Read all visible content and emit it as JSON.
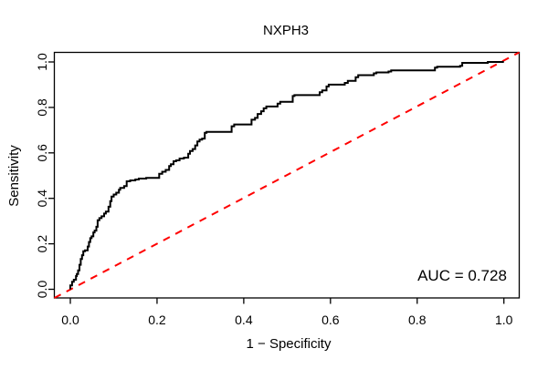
{
  "chart_data": {
    "type": "line",
    "title": "NXPH3",
    "xlabel": "1 − Specificity",
    "ylabel": "Sensitivity",
    "xlim": [
      0,
      1
    ],
    "ylim": [
      0,
      1
    ],
    "x_ticks": [
      0.0,
      0.2,
      0.4,
      0.6,
      0.8,
      1.0
    ],
    "x_tick_labels": [
      "0.0",
      "0.2",
      "0.4",
      "0.6",
      "0.8",
      "1.0"
    ],
    "y_ticks": [
      0.0,
      0.2,
      0.4,
      0.6,
      0.8,
      1.0
    ],
    "y_tick_labels": [
      "0.0",
      "0.2",
      "0.4",
      "0.6",
      "0.8",
      "1.0"
    ],
    "grid": "off",
    "frame": "box",
    "series": [
      {
        "name": "ROC curve",
        "style": "step",
        "color": "#000000",
        "line_width": 2,
        "points": [
          [
            0.0,
            0.0
          ],
          [
            0.004,
            0.017
          ],
          [
            0.008,
            0.033
          ],
          [
            0.013,
            0.042
          ],
          [
            0.015,
            0.058
          ],
          [
            0.018,
            0.067
          ],
          [
            0.021,
            0.083
          ],
          [
            0.024,
            0.108
          ],
          [
            0.027,
            0.133
          ],
          [
            0.03,
            0.15
          ],
          [
            0.034,
            0.167
          ],
          [
            0.04,
            0.171
          ],
          [
            0.043,
            0.188
          ],
          [
            0.046,
            0.208
          ],
          [
            0.049,
            0.225
          ],
          [
            0.053,
            0.233
          ],
          [
            0.056,
            0.25
          ],
          [
            0.06,
            0.258
          ],
          [
            0.063,
            0.275
          ],
          [
            0.067,
            0.304
          ],
          [
            0.072,
            0.313
          ],
          [
            0.078,
            0.321
          ],
          [
            0.082,
            0.333
          ],
          [
            0.088,
            0.342
          ],
          [
            0.092,
            0.363
          ],
          [
            0.095,
            0.388
          ],
          [
            0.1,
            0.408
          ],
          [
            0.106,
            0.417
          ],
          [
            0.112,
            0.425
          ],
          [
            0.115,
            0.438
          ],
          [
            0.124,
            0.446
          ],
          [
            0.13,
            0.454
          ],
          [
            0.138,
            0.475
          ],
          [
            0.15,
            0.479
          ],
          [
            0.158,
            0.483
          ],
          [
            0.175,
            0.487
          ],
          [
            0.205,
            0.49
          ],
          [
            0.212,
            0.508
          ],
          [
            0.22,
            0.517
          ],
          [
            0.228,
            0.525
          ],
          [
            0.232,
            0.542
          ],
          [
            0.238,
            0.55
          ],
          [
            0.244,
            0.563
          ],
          [
            0.252,
            0.567
          ],
          [
            0.262,
            0.575
          ],
          [
            0.272,
            0.579
          ],
          [
            0.276,
            0.596
          ],
          [
            0.282,
            0.608
          ],
          [
            0.288,
            0.617
          ],
          [
            0.293,
            0.633
          ],
          [
            0.298,
            0.65
          ],
          [
            0.304,
            0.658
          ],
          [
            0.31,
            0.663
          ],
          [
            0.314,
            0.688
          ],
          [
            0.372,
            0.692
          ],
          [
            0.378,
            0.717
          ],
          [
            0.418,
            0.725
          ],
          [
            0.426,
            0.746
          ],
          [
            0.432,
            0.754
          ],
          [
            0.44,
            0.771
          ],
          [
            0.446,
            0.783
          ],
          [
            0.452,
            0.796
          ],
          [
            0.478,
            0.804
          ],
          [
            0.484,
            0.817
          ],
          [
            0.513,
            0.825
          ],
          [
            0.517,
            0.85
          ],
          [
            0.575,
            0.854
          ],
          [
            0.581,
            0.867
          ],
          [
            0.591,
            0.875
          ],
          [
            0.596,
            0.892
          ],
          [
            0.633,
            0.9
          ],
          [
            0.64,
            0.908
          ],
          [
            0.658,
            0.917
          ],
          [
            0.664,
            0.933
          ],
          [
            0.7,
            0.942
          ],
          [
            0.706,
            0.95
          ],
          [
            0.734,
            0.954
          ],
          [
            0.74,
            0.958
          ],
          [
            0.841,
            0.963
          ],
          [
            0.846,
            0.975
          ],
          [
            0.899,
            0.979
          ],
          [
            0.904,
            0.983
          ],
          [
            0.91,
            0.996
          ],
          [
            0.963,
            0.996
          ],
          [
            0.968,
            1.0
          ],
          [
            1.0,
            1.0
          ]
        ]
      },
      {
        "name": "chance diagonal",
        "style": "dashed",
        "color": "#FF0000",
        "line_width": 2,
        "from": [
          0,
          0
        ],
        "to": [
          1,
          1
        ]
      }
    ],
    "annotation": {
      "label": "AUC = 0.728",
      "auc": 0.728
    },
    "legend_position": "none"
  }
}
